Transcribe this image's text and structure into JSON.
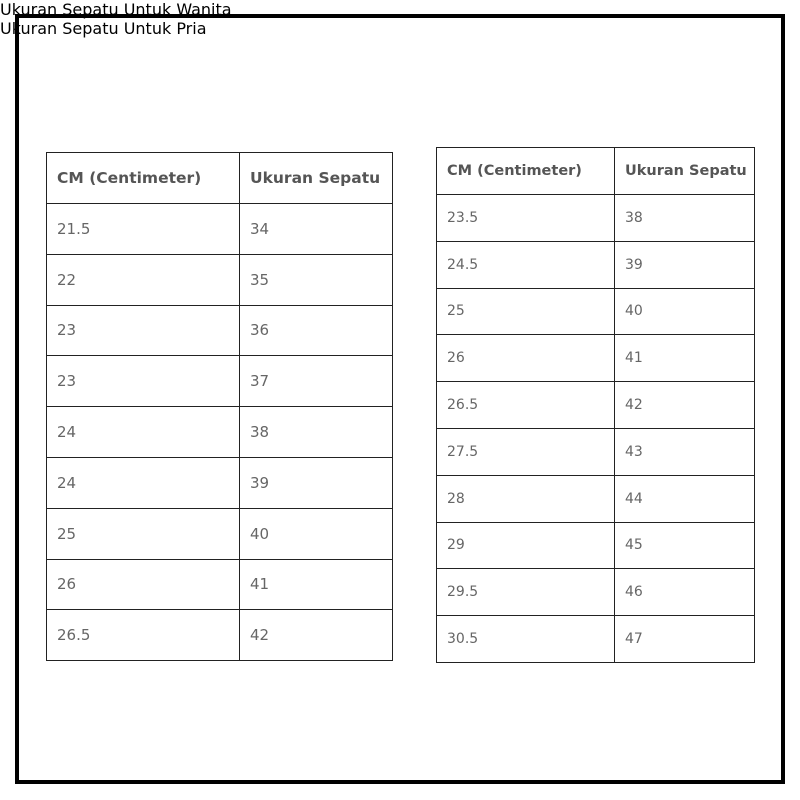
{
  "tables": [
    {
      "title": "Ukuran Sepatu Untuk Wanita",
      "header": [
        "CM (Centimeter)",
        "Ukuran Sepatu"
      ],
      "rows": [
        [
          "21.5",
          "34"
        ],
        [
          "22",
          "35"
        ],
        [
          "23",
          "36"
        ],
        [
          "23",
          "37"
        ],
        [
          "24",
          "38"
        ],
        [
          "24",
          "39"
        ],
        [
          "25",
          "40"
        ],
        [
          "26",
          "41"
        ],
        [
          "26.5",
          "42"
        ]
      ]
    },
    {
      "title": "Ukuran Sepatu Untuk Pria",
      "header": [
        "CM (Centimeter)",
        "Ukuran Sepatu"
      ],
      "rows": [
        [
          "23.5",
          "38"
        ],
        [
          "24.5",
          "39"
        ],
        [
          "25",
          "40"
        ],
        [
          "26",
          "41"
        ],
        [
          "26.5",
          "42"
        ],
        [
          "27.5",
          "43"
        ],
        [
          "28",
          "44"
        ],
        [
          "29",
          "45"
        ],
        [
          "29.5",
          "46"
        ],
        [
          "30.5",
          "47"
        ]
      ]
    }
  ]
}
